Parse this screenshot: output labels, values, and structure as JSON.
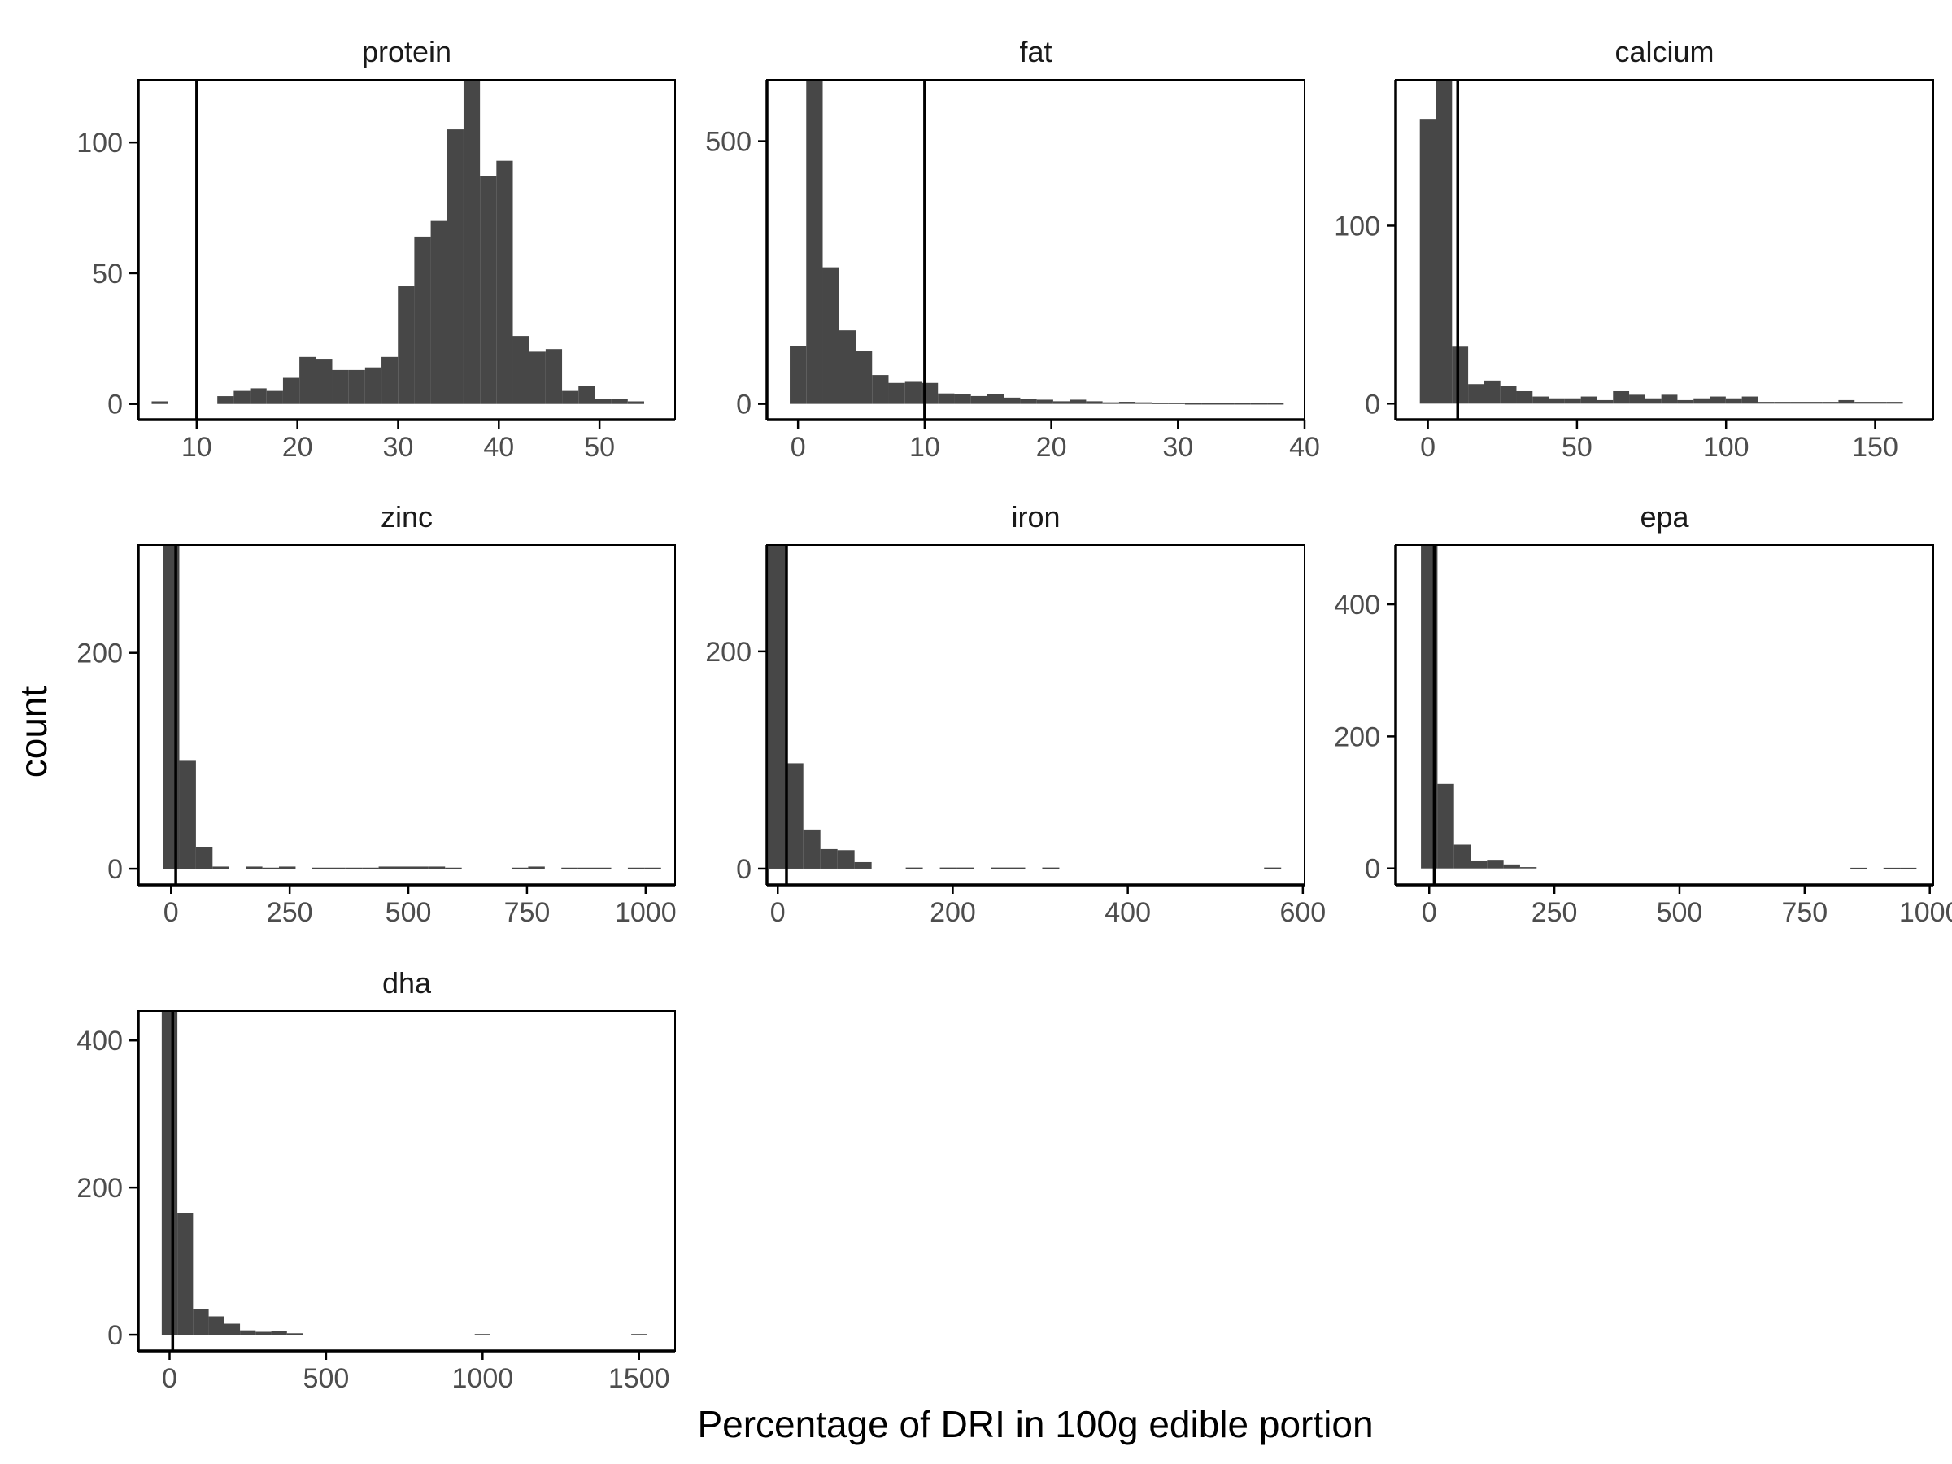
{
  "xlabel": "Percentage of DRI in 100g edible portion",
  "ylabel": "count",
  "colors": {
    "bar": "#474747",
    "refline": "#000000",
    "axis": "#000000",
    "tick_text": "#4d4d4d"
  },
  "chart_data": [
    {
      "type": "bar",
      "title": "protein",
      "xlim": [
        4.2,
        57.5
      ],
      "ylim": [
        -6,
        124
      ],
      "xticks": [
        10,
        20,
        30,
        40,
        50
      ],
      "yticks": [
        0,
        50,
        100
      ],
      "refline": 10,
      "bin_start": 5.53,
      "bin_width": 1.63,
      "values": [
        1,
        0,
        0,
        0,
        3,
        5,
        6,
        5,
        10,
        18,
        17,
        13,
        13,
        14,
        18,
        45,
        64,
        70,
        105,
        124,
        87,
        93,
        26,
        20,
        21,
        5,
        7,
        2,
        2,
        1
      ]
    },
    {
      "type": "bar",
      "title": "fat",
      "xlim": [
        -2.45,
        40.0
      ],
      "ylim": [
        -30,
        617
      ],
      "xticks": [
        0,
        10,
        20,
        30,
        40
      ],
      "yticks": [
        0,
        500
      ],
      "refline": 10,
      "bin_start": -0.65,
      "bin_width": 1.3,
      "values": [
        110,
        617,
        260,
        140,
        100,
        55,
        40,
        42,
        40,
        20,
        18,
        15,
        18,
        12,
        10,
        8,
        5,
        8,
        5,
        3,
        4,
        3,
        2,
        2,
        1,
        1,
        1,
        1,
        1,
        1
      ]
    },
    {
      "type": "bar",
      "title": "calcium",
      "xlim": [
        -10.8,
        169.5
      ],
      "ylim": [
        -9,
        182
      ],
      "xticks": [
        0,
        50,
        100,
        150
      ],
      "yticks": [
        0,
        100
      ],
      "refline": 10,
      "bin_start": -2.7,
      "bin_width": 5.4,
      "values": [
        160,
        182,
        32,
        11,
        13,
        10,
        7,
        4,
        3,
        3,
        4,
        2,
        7,
        5,
        3,
        5,
        2,
        3,
        4,
        3,
        4,
        1,
        1,
        1,
        1,
        1,
        2,
        1,
        1,
        1
      ]
    },
    {
      "type": "bar",
      "title": "zinc",
      "xlim": [
        -69,
        1062
      ],
      "ylim": [
        -15,
        300
      ],
      "xticks": [
        0,
        250,
        500,
        750,
        1000
      ],
      "yticks": [
        0,
        200
      ],
      "refline": 10,
      "bin_start": -17.5,
      "bin_width": 35,
      "values": [
        300,
        100,
        20,
        2,
        0,
        2,
        1,
        2,
        0,
        1,
        1,
        1,
        1,
        2,
        2,
        2,
        2,
        1,
        0,
        0,
        0,
        1,
        2,
        0,
        1,
        1,
        1,
        0,
        1,
        1
      ]
    },
    {
      "type": "bar",
      "title": "iron",
      "xlim": [
        -12.3,
        602
      ],
      "ylim": [
        -15,
        298
      ],
      "xticks": [
        0,
        200,
        400,
        600
      ],
      "yticks": [
        0,
        200
      ],
      "refline": 10,
      "bin_start": -9.75,
      "bin_width": 19.5,
      "values": [
        298,
        97,
        36,
        18,
        17,
        6,
        0,
        0,
        1,
        0,
        1,
        1,
        0,
        1,
        1,
        0,
        1,
        0,
        0,
        0,
        0,
        0,
        0,
        0,
        0,
        0,
        0,
        0,
        0,
        1
      ]
    },
    {
      "type": "bar",
      "title": "epa",
      "xlim": [
        -67,
        1007
      ],
      "ylim": [
        -25,
        490
      ],
      "xticks": [
        0,
        250,
        500,
        750,
        1000
      ],
      "yticks": [
        0,
        200,
        400
      ],
      "refline": 10,
      "bin_start": -16.5,
      "bin_width": 33,
      "values": [
        490,
        128,
        36,
        12,
        13,
        6,
        2,
        0,
        0,
        0,
        0,
        0,
        0,
        0,
        0,
        0,
        0,
        0,
        0,
        0,
        0,
        0,
        0,
        0,
        0,
        0,
        1,
        0,
        1,
        1
      ]
    },
    {
      "type": "bar",
      "title": "dha",
      "xlim": [
        -100,
        1615
      ],
      "ylim": [
        -22,
        440
      ],
      "xticks": [
        0,
        500,
        1000,
        1500
      ],
      "yticks": [
        0,
        200,
        400
      ],
      "refline": 10,
      "bin_start": -25,
      "bin_width": 50,
      "values": [
        440,
        165,
        35,
        25,
        15,
        6,
        4,
        5,
        2,
        0,
        0,
        0,
        0,
        0,
        0,
        0,
        0,
        0,
        0,
        0,
        1,
        0,
        0,
        0,
        0,
        0,
        0,
        0,
        0,
        0,
        1
      ]
    }
  ]
}
